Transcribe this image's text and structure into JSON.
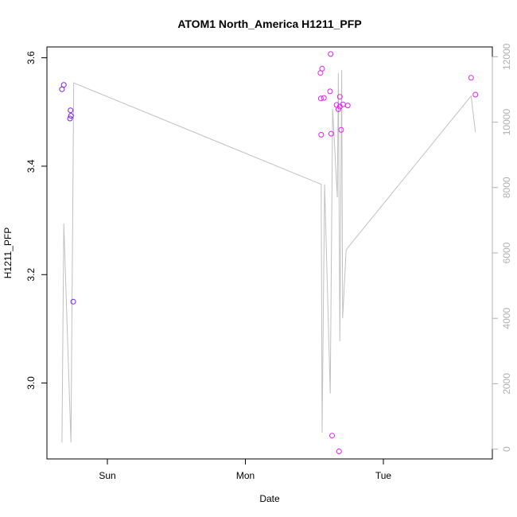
{
  "chart_data": {
    "type": "scatter",
    "title": "ATOM1 North_America H1211_PFP",
    "xlabel": "Date",
    "ylabel": "H1211_PFP",
    "x_ticks": [
      "Sun",
      "Mon",
      "Tue"
    ],
    "y_ticks": [
      "3.0",
      "3.2",
      "3.4",
      "3.6"
    ],
    "y_ticks_right": [
      "0",
      "2000",
      "4000",
      "6000",
      "8000",
      "10000",
      "12000"
    ],
    "ylim": [
      2.86,
      3.62
    ],
    "ylim_right": [
      -300,
      12300
    ],
    "colors": {
      "line": "#c0c0c0",
      "points_early": "#7a1ee8",
      "points_late": "#e020f0",
      "axis": "#000000",
      "right_axis": "#b0b0b0"
    },
    "series": [
      {
        "kind": "points",
        "axis": "left",
        "points": [
          {
            "x": -0.329,
            "y": 3.542,
            "c": "points_early"
          },
          {
            "x": -0.316,
            "y": 3.55,
            "c": "points_early"
          },
          {
            "x": -0.267,
            "y": 3.503,
            "c": "points_early"
          },
          {
            "x": -0.264,
            "y": 3.493,
            "c": "points_early"
          },
          {
            "x": -0.271,
            "y": 3.488,
            "c": "points_early"
          },
          {
            "x": -0.247,
            "y": 3.15,
            "c": "points_early"
          },
          {
            "x": 1.544,
            "y": 3.572,
            "c": "points_late"
          },
          {
            "x": 1.556,
            "y": 3.58,
            "c": "points_late"
          },
          {
            "x": 1.547,
            "y": 3.525,
            "c": "points_late"
          },
          {
            "x": 1.569,
            "y": 3.526,
            "c": "points_late"
          },
          {
            "x": 1.549,
            "y": 3.458,
            "c": "points_late"
          },
          {
            "x": 1.618,
            "y": 3.607,
            "c": "points_late"
          },
          {
            "x": 1.614,
            "y": 3.538,
            "c": "points_late"
          },
          {
            "x": 1.622,
            "y": 3.46,
            "c": "points_late"
          },
          {
            "x": 1.628,
            "y": 2.903,
            "c": "points_late"
          },
          {
            "x": 1.661,
            "y": 3.513,
            "c": "points_late"
          },
          {
            "x": 1.674,
            "y": 3.505,
            "c": "points_late"
          },
          {
            "x": 1.685,
            "y": 3.51,
            "c": "points_late"
          },
          {
            "x": 1.707,
            "y": 3.514,
            "c": "points_late"
          },
          {
            "x": 1.685,
            "y": 3.528,
            "c": "points_late"
          },
          {
            "x": 1.694,
            "y": 3.467,
            "c": "points_late"
          },
          {
            "x": 1.742,
            "y": 3.512,
            "c": "points_late"
          },
          {
            "x": 1.679,
            "y": 2.874,
            "c": "points_late"
          },
          {
            "x": 2.636,
            "y": 3.563,
            "c": "points_late"
          },
          {
            "x": 2.667,
            "y": 3.532,
            "c": "points_late"
          }
        ]
      },
      {
        "kind": "line",
        "axis": "right",
        "points": [
          {
            "x": -0.329,
            "y": 200
          },
          {
            "x": -0.316,
            "y": 6900
          },
          {
            "x": -0.264,
            "y": 200
          },
          {
            "x": -0.244,
            "y": 11200
          },
          {
            "x": 1.549,
            "y": 8100
          },
          {
            "x": 1.556,
            "y": 500
          },
          {
            "x": 1.574,
            "y": 8100
          },
          {
            "x": 1.615,
            "y": 1700
          },
          {
            "x": 1.632,
            "y": 10400
          },
          {
            "x": 1.666,
            "y": 7700
          },
          {
            "x": 1.674,
            "y": 11500
          },
          {
            "x": 1.685,
            "y": 3300
          },
          {
            "x": 1.698,
            "y": 11600
          },
          {
            "x": 1.705,
            "y": 4000
          },
          {
            "x": 1.73,
            "y": 6100
          },
          {
            "x": 2.636,
            "y": 10800
          },
          {
            "x": 2.667,
            "y": 9700
          }
        ]
      }
    ]
  }
}
